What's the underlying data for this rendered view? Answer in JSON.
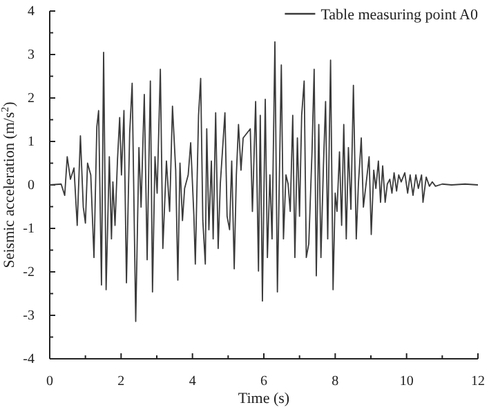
{
  "chart_data": {
    "type": "line",
    "xlabel": "Time (s)",
    "ylabel": "Seismic acceleration (m/s$^{2}$)",
    "xlim": [
      0,
      12
    ],
    "ylim": [
      -4,
      4
    ],
    "xticks": [
      0,
      {
        "value": 1,
        "label": null
      },
      2,
      {
        "value": 3,
        "label": null
      },
      4,
      {
        "value": 5,
        "label": null
      },
      6,
      {
        "value": 7,
        "label": null
      },
      8,
      {
        "value": 9,
        "label": null
      },
      10,
      {
        "value": 11,
        "label": null
      },
      12
    ],
    "yticks": [
      -4,
      {
        "value": -3.5,
        "label": null
      },
      -3,
      {
        "value": -2.5,
        "label": null
      },
      -2,
      {
        "value": -1.5,
        "label": null
      },
      -1,
      {
        "value": -0.5,
        "label": null
      },
      0,
      {
        "value": 0.5,
        "label": null
      },
      1,
      {
        "value": 1.5,
        "label": null
      },
      2,
      {
        "value": 2.5,
        "label": null
      },
      3,
      {
        "value": 3.5,
        "label": null
      },
      4
    ],
    "grid": false,
    "legend": "top right",
    "marker": "none",
    "line_style": "solid",
    "series": [
      {
        "name": "Table measuring point A0",
        "color": "#3a3a3a",
        "x": [
          0,
          0.32,
          0.42,
          0.49,
          0.58,
          0.68,
          0.77,
          0.86,
          0.94,
          1.0,
          1.06,
          1.15,
          1.24,
          1.32,
          1.37,
          1.45,
          1.51,
          1.58,
          1.67,
          1.73,
          1.77,
          1.83,
          1.9,
          1.96,
          2.01,
          2.08,
          2.15,
          2.24,
          2.31,
          2.41,
          2.5,
          2.56,
          2.65,
          2.73,
          2.82,
          2.88,
          2.95,
          3.01,
          3.1,
          3.17,
          3.27,
          3.36,
          3.44,
          3.53,
          3.59,
          3.65,
          3.72,
          3.78,
          3.88,
          3.95,
          4.04,
          4.08,
          4.17,
          4.23,
          4.29,
          4.36,
          4.4,
          4.46,
          4.53,
          4.58,
          4.65,
          4.72,
          4.78,
          4.83,
          4.91,
          4.97,
          5.04,
          5.1,
          5.17,
          5.23,
          5.29,
          5.36,
          5.42,
          5.62,
          5.68,
          5.77,
          5.85,
          5.9,
          5.96,
          6.04,
          6.1,
          6.17,
          6.23,
          6.31,
          6.38,
          6.49,
          6.55,
          6.62,
          6.68,
          6.74,
          6.81,
          6.87,
          6.94,
          7.0,
          7.06,
          7.13,
          7.19,
          7.26,
          7.35,
          7.41,
          7.47,
          7.54,
          7.6,
          7.67,
          7.73,
          7.79,
          7.87,
          7.94,
          8.0,
          8.05,
          8.12,
          8.18,
          8.24,
          8.31,
          8.37,
          8.44,
          8.51,
          8.59,
          8.65,
          8.73,
          8.79,
          8.88,
          8.95,
          9.01,
          9.08,
          9.14,
          9.21,
          9.27,
          9.33,
          9.4,
          9.46,
          9.53,
          9.59,
          9.65,
          9.72,
          9.78,
          9.85,
          9.95,
          10.03,
          10.1,
          10.18,
          10.26,
          10.33,
          10.42,
          10.46,
          10.55,
          10.64,
          10.72,
          10.81,
          11.0,
          11.26,
          11.64,
          12.0
        ],
        "values": [
          0,
          0.02,
          -0.24,
          0.65,
          0.13,
          0.39,
          -0.93,
          1.13,
          -0.51,
          -0.88,
          0.5,
          0.23,
          -1.67,
          1.34,
          1.71,
          -2.3,
          3.05,
          -2.41,
          0.65,
          -1.24,
          0.07,
          -0.93,
          0.6,
          1.55,
          0.23,
          1.71,
          -2.25,
          1.18,
          2.34,
          -3.14,
          0.86,
          -0.51,
          2.08,
          -1.72,
          2.39,
          -2.46,
          0.65,
          -0.19,
          2.66,
          -1.46,
          0.55,
          -0.61,
          1.81,
          0.34,
          -2.19,
          0.5,
          -0.82,
          -0.08,
          0.23,
          0.97,
          -0.72,
          -1.82,
          1.6,
          2.45,
          -0.82,
          -1.82,
          1.29,
          -1.03,
          0.55,
          -1.24,
          1.66,
          -1.46,
          0.02,
          0.65,
          1.66,
          -0.72,
          -1.03,
          0.55,
          -1.93,
          0.23,
          1.39,
          0.34,
          1.08,
          1.29,
          -0.61,
          1.92,
          -1.98,
          1.6,
          -2.67,
          1.97,
          -1.67,
          0.23,
          -1.24,
          3.29,
          -2.46,
          2.76,
          -1.24,
          0.23,
          0.02,
          -0.61,
          1.6,
          -1.67,
          1.08,
          -0.72,
          1.6,
          2.39,
          -1.67,
          -1.35,
          0.76,
          2.66,
          -2.09,
          1.39,
          -1.67,
          0.44,
          1.92,
          -1.24,
          2.87,
          -2.41,
          -0.19,
          -0.61,
          0.76,
          -0.93,
          1.39,
          -1.24,
          0.86,
          -0.56,
          2.29,
          -1.24,
          0.02,
          1.08,
          -0.51,
          0.13,
          0.65,
          -1.14,
          0.34,
          -0.08,
          0.55,
          -0.4,
          0.44,
          -0.4,
          0.02,
          0.13,
          -0.19,
          0.28,
          -0.14,
          0.23,
          0.07,
          0.28,
          -0.19,
          0.23,
          -0.24,
          0.23,
          -0.08,
          0.23,
          -0.4,
          0.18,
          -0.03,
          0.07,
          -0.03,
          0.02,
          0,
          0.02,
          0
        ]
      }
    ]
  }
}
